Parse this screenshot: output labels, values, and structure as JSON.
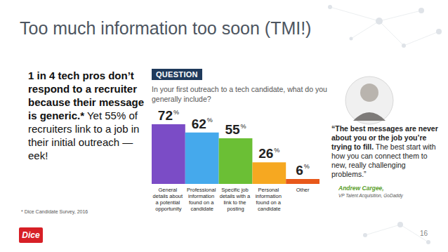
{
  "slide": {
    "title": "Too much information too soon (TMI!)",
    "lead_bold": "1 in 4 tech pros don’t respond to a recruiter because their message is generic.*",
    "lead_rest": "Yet 55% of recruiters link to a job in their initial outreach — eek!",
    "footnote": "* Dice Candidate Survey, 2016",
    "logo": "Dice",
    "page": "16",
    "question_tag": "QUESTION",
    "question": "In your first outreach to a tech candidate, what do you generally include?",
    "quote_bold": "“The best messages are never about you or the job you’re trying to fill.",
    "quote_rest": "The best start with how you can connect them to new, really challenging problems.”",
    "quote_name": "Andrew Cargee,",
    "quote_role": "VP Talent Acquisition, GoDaddy"
  },
  "chart_data": {
    "type": "bar",
    "categories": [
      "General details about a potential opportunity",
      "Professional information found on a candidate",
      "Specific job details with a link to the posting",
      "Personal information found on a candidate",
      "Other"
    ],
    "values": [
      72,
      62,
      55,
      26,
      6
    ],
    "value_labels": [
      "72%",
      "62%",
      "55%",
      "26%",
      "6%"
    ],
    "colors": [
      "#7b4cc6",
      "#45a9ec",
      "#6bbf35",
      "#f6a821",
      "#e8581a"
    ],
    "ylim": [
      0,
      72
    ],
    "grid": false,
    "data_labels": true,
    "tick_labels": "x"
  }
}
